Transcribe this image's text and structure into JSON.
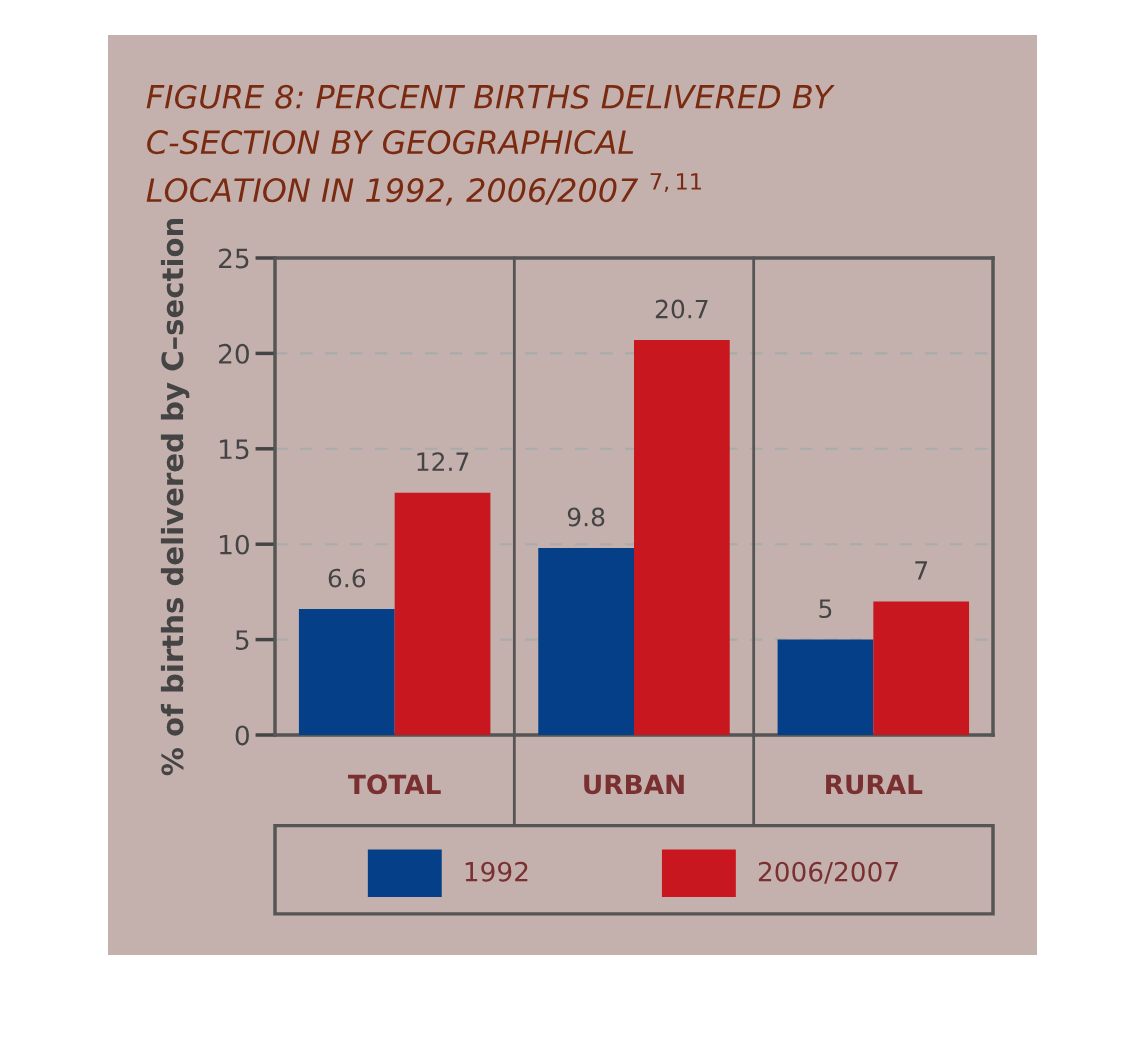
{
  "chart_data": {
    "type": "bar",
    "title": "FIGURE 8: PERCENT BIRTHS DELIVERED BY\nC-SECTION BY GEOGRAPHICAL\nLOCATION IN 1992, 2006/2007 $^{7,11}$",
    "ylabel": "% of births delivered by C–section",
    "categories": [
      "TOTAL",
      "URBAN",
      "RURAL"
    ],
    "series": [
      {
        "name": "1992",
        "color": "#053f87",
        "values": [
          6.6,
          9.8,
          5
        ]
      },
      {
        "name": "2006/2007",
        "color": "#c8171e",
        "values": [
          12.7,
          20.7,
          7
        ]
      }
    ],
    "ylim": [
      0,
      25
    ],
    "yticks": [
      0,
      5,
      10,
      15,
      20,
      25
    ],
    "grid": "y",
    "data_labels": true,
    "legend": "bottom"
  }
}
